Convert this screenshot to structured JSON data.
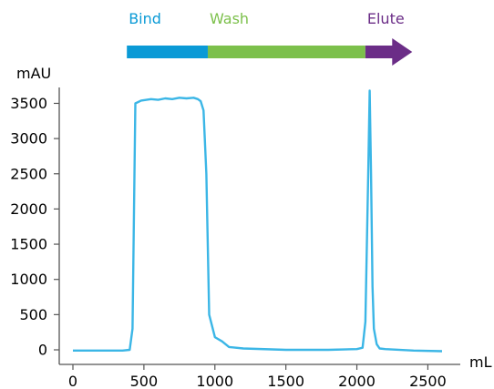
{
  "chart_data": {
    "type": "line",
    "xlabel": "mL",
    "ylabel": "mAU",
    "xlim": [
      0,
      2600
    ],
    "ylim": [
      0,
      3700
    ],
    "xticks": [
      0,
      500,
      1000,
      1500,
      2000,
      2500
    ],
    "yticks": [
      0,
      500,
      1000,
      1500,
      2000,
      2500,
      3000,
      3500
    ],
    "line_color": "#3bb6e6",
    "phases": [
      {
        "label": "Bind",
        "start": 380,
        "end": 950,
        "color": "#0a9ad6"
      },
      {
        "label": "Wash",
        "start": 950,
        "end": 2060,
        "color": "#7cc04b"
      },
      {
        "label": "Elute",
        "start": 2060,
        "end": 2390,
        "color": "#6b2d87"
      }
    ],
    "series": [
      {
        "x": [
          0,
          350,
          400,
          420,
          440,
          480,
          550,
          600,
          650,
          700,
          750,
          800,
          850,
          880,
          900,
          920,
          940,
          960,
          1000,
          1050,
          1100,
          1200,
          1500,
          1800,
          2000,
          2040,
          2060,
          2080,
          2090,
          2100,
          2110,
          2120,
          2140,
          2160,
          2200,
          2400,
          2600
        ],
        "y": [
          -10,
          -10,
          0,
          300,
          3500,
          3540,
          3560,
          3550,
          3570,
          3560,
          3580,
          3570,
          3580,
          3560,
          3530,
          3400,
          2500,
          500,
          180,
          120,
          40,
          20,
          0,
          0,
          10,
          30,
          400,
          2500,
          3680,
          2500,
          900,
          300,
          80,
          20,
          10,
          -10,
          -20
        ]
      }
    ]
  }
}
